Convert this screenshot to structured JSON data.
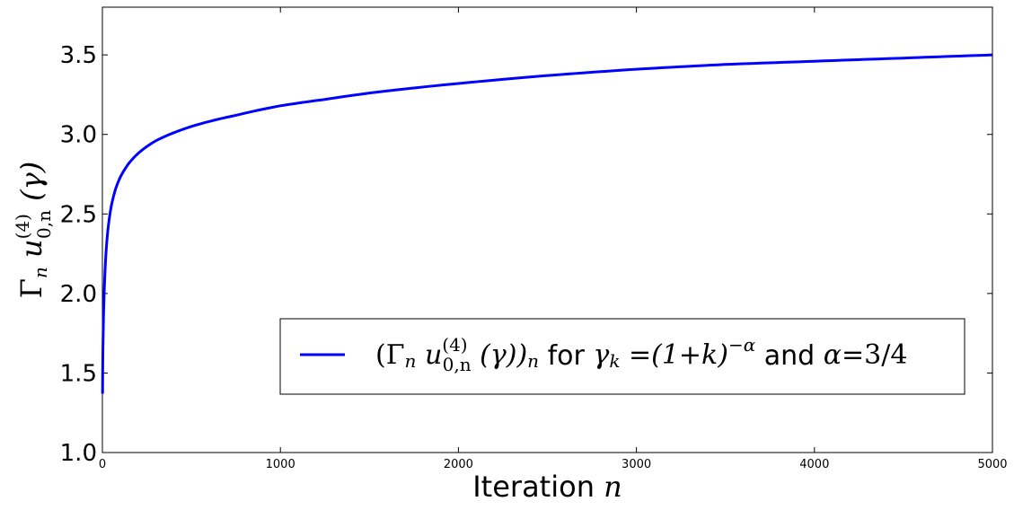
{
  "chart_data": {
    "type": "line",
    "title": "",
    "xlabel": "Iteration n",
    "ylabel": "Γn u(4)0,n (γ)",
    "xlim": [
      0,
      5000
    ],
    "ylim": [
      1.0,
      3.8
    ],
    "x_ticks": [
      "0",
      "1000",
      "2000",
      "3000",
      "4000",
      "5000"
    ],
    "y_ticks": [
      "1.0",
      "1.5",
      "2.0",
      "2.5",
      "3.0",
      "3.5"
    ],
    "grid": false,
    "legend_position": "lower-right",
    "series": [
      {
        "name": "(Γn u(4)0,n (γ))n for γk =(1+k)−α and α=3/4",
        "color": "#0000ff",
        "x": [
          1,
          5,
          10,
          20,
          30,
          50,
          75,
          100,
          150,
          200,
          300,
          400,
          500,
          750,
          1000,
          1250,
          1500,
          2000,
          2500,
          3000,
          3500,
          4000,
          4500,
          5000
        ],
        "y": [
          1.37,
          1.78,
          2.0,
          2.25,
          2.39,
          2.55,
          2.66,
          2.73,
          2.82,
          2.88,
          2.96,
          3.01,
          3.05,
          3.12,
          3.18,
          3.22,
          3.26,
          3.32,
          3.37,
          3.41,
          3.44,
          3.46,
          3.48,
          3.5
        ]
      }
    ]
  }
}
